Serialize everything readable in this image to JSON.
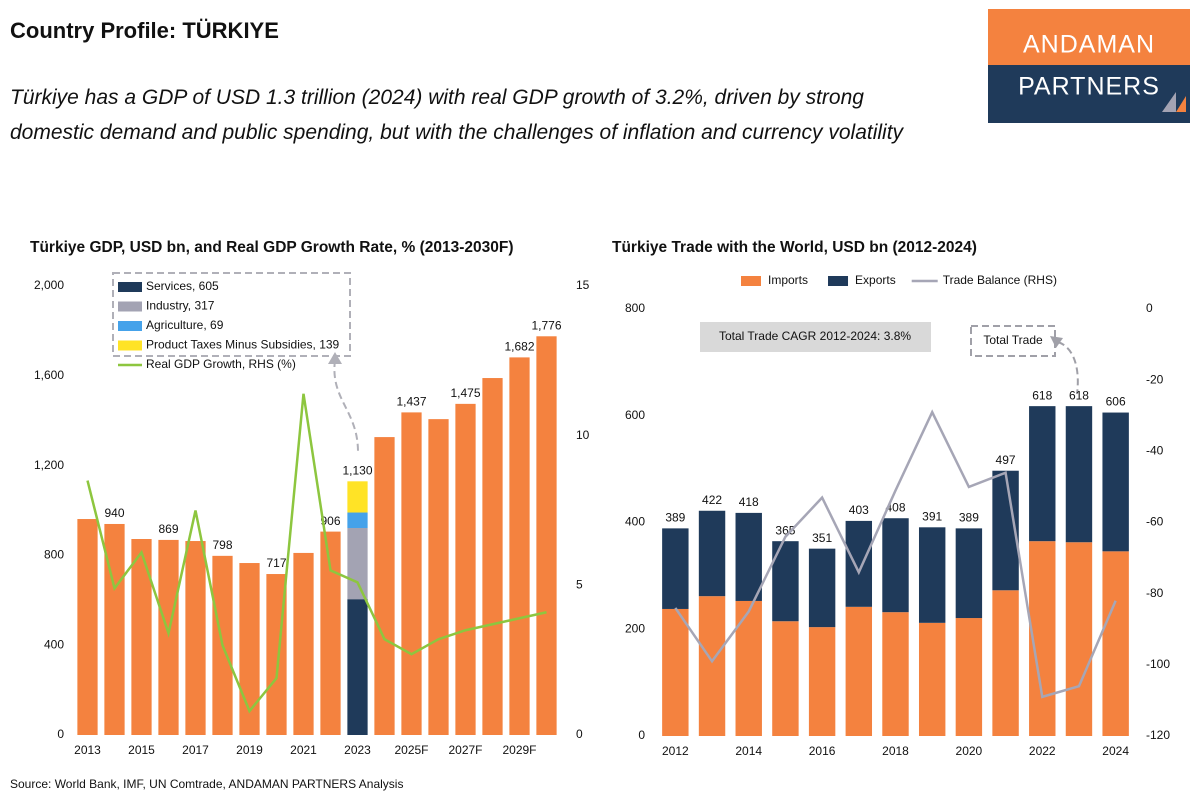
{
  "header": {
    "title": "Country Profile: TÜRKIYE",
    "subtitle": "Türkiye has a GDP of USD 1.3 trillion (2024) with real GDP growth of 3.2%, driven by strong domestic demand and public spending, but with the challenges of inflation and currency volatility"
  },
  "logo": {
    "top": "ANDAMAN",
    "bottom": "PARTNERS"
  },
  "chart_data": [
    {
      "type": "bar",
      "title": "Türkiye GDP, USD bn, and Real GDP Growth Rate, % (2013-2030F)",
      "categories": [
        "2013",
        null,
        "2015",
        null,
        "2017",
        null,
        "2019",
        null,
        "2021",
        null,
        "2023",
        null,
        "2025F",
        null,
        "2027F",
        null,
        "2029F",
        null
      ],
      "series": [
        {
          "color": "#f4823f",
          "values": [
            962,
            940,
            873,
            869,
            864,
            798,
            766,
            717,
            811,
            906,
            null,
            1327,
            1437,
            1407,
            1475,
            1590,
            1682,
            1776
          ]
        },
        {
          "name": "Services, 605",
          "color": "#1f3a5a",
          "values": [
            null,
            null,
            null,
            null,
            null,
            null,
            null,
            null,
            null,
            null,
            605,
            null,
            null,
            null,
            null,
            null,
            null,
            null
          ]
        },
        {
          "name": "Industry, 317",
          "color": "#a3a3b3",
          "values": [
            null,
            null,
            null,
            null,
            null,
            null,
            null,
            null,
            null,
            null,
            317,
            null,
            null,
            null,
            null,
            null,
            null,
            null
          ]
        },
        {
          "name": "Agriculture, 69",
          "color": "#45a2ea",
          "values": [
            null,
            null,
            null,
            null,
            null,
            null,
            null,
            null,
            null,
            null,
            69,
            null,
            null,
            null,
            null,
            null,
            null,
            null
          ]
        },
        {
          "name": "Product Taxes Minus Subsidies, 139",
          "color": "#ffe326",
          "values": [
            null,
            null,
            null,
            null,
            null,
            null,
            null,
            null,
            null,
            null,
            139,
            null,
            null,
            null,
            null,
            null,
            null,
            null
          ]
        },
        {
          "name": "Real GDP Growth, RHS (%)",
          "color": "#8dc63f",
          "axis": "y2",
          "values": [
            8.5,
            4.9,
            6.1,
            3.4,
            7.5,
            3.0,
            0.8,
            1.9,
            11.4,
            5.5,
            5.1,
            3.2,
            2.7,
            3.2,
            3.5,
            3.7,
            3.9,
            4.1
          ]
        }
      ],
      "totals": [
        null,
        940,
        null,
        869,
        null,
        798,
        null,
        717,
        null,
        906,
        1130,
        null,
        1437,
        null,
        1475,
        null,
        1682,
        1776
      ],
      "total_labels": [
        null,
        "940",
        null,
        "869",
        null,
        "798",
        null,
        "717",
        null,
        "906",
        "1,130",
        null,
        "1,437",
        null,
        "1,475",
        null,
        "1,682",
        "1,776"
      ],
      "ylim": [
        0,
        2000
      ],
      "yticks": [
        0,
        400,
        800,
        {
          "value": 1200,
          "label": "1,200"
        },
        {
          "value": 1600,
          "label": "1,600"
        },
        {
          "value": 2000,
          "label": "2,000"
        }
      ],
      "y2lim": [
        0,
        15
      ],
      "y2ticks": [
        0,
        5,
        10,
        15
      ],
      "grid": false,
      "legend": "upper left"
    },
    {
      "type": "bar",
      "title": "Türkiye Trade with the World, USD bn (2012-2024)",
      "categories": [
        "2012",
        null,
        "2014",
        null,
        "2016",
        null,
        "2018",
        null,
        "2020",
        null,
        "2022",
        null,
        "2024"
      ],
      "series": [
        {
          "name": "Imports",
          "color": "#f4823f",
          "values": [
            238,
            262,
            253,
            215,
            204,
            242,
            232,
            212,
            221,
            273,
            365,
            363,
            346
          ]
        },
        {
          "name": "Exports",
          "color": "#1f3a5a",
          "values": [
            151,
            160,
            165,
            150,
            147,
            161,
            176,
            179,
            168,
            224,
            253,
            255,
            260
          ]
        },
        {
          "name": "Trade Balance (RHS)",
          "color": "#a6a6b6",
          "axis": "y2",
          "values": [
            -84,
            -99,
            -85,
            -64,
            -53,
            -74,
            -51,
            -29,
            -50,
            -46,
            -109,
            -106,
            -82
          ]
        }
      ],
      "totals": [
        389,
        422,
        418,
        365,
        351,
        403,
        408,
        391,
        389,
        497,
        618,
        618,
        606
      ],
      "ylim": [
        0,
        800
      ],
      "yticks": [
        0,
        200,
        400,
        600,
        800
      ],
      "y2lim": [
        -120,
        0
      ],
      "y2ticks": [
        -120,
        -100,
        -80,
        -60,
        -40,
        -20,
        0
      ],
      "grid": false,
      "legend": "top",
      "annotations": [
        "Total Trade CAGR 2012-2024: 3.8%",
        "Total Trade"
      ]
    }
  ],
  "source": "Source: World Bank, IMF, UN Comtrade, ANDAMAN PARTNERS Analysis"
}
